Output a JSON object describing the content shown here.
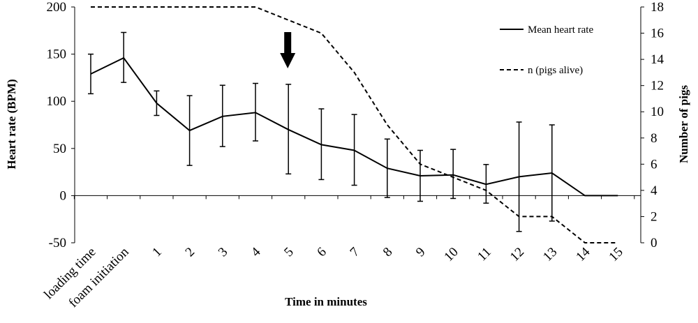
{
  "chart_data": {
    "type": "line",
    "categories": [
      "loading time",
      "foam initiation",
      "1",
      "2",
      "3",
      "4",
      "5",
      "6",
      "7",
      "8",
      "9",
      "10",
      "11",
      "12",
      "13",
      "14",
      "15"
    ],
    "series": [
      {
        "name": "Mean heart rate",
        "axis": "left",
        "style": "solid",
        "values": [
          129,
          146,
          98,
          69,
          84,
          88,
          70,
          54,
          48,
          29,
          21,
          22,
          12,
          20,
          24,
          0,
          0
        ],
        "error_low": [
          108,
          120,
          85,
          32,
          52,
          58,
          23,
          17,
          11,
          -2,
          -6,
          -3,
          -8,
          -38,
          -27,
          null,
          null
        ],
        "error_high": [
          150,
          173,
          111,
          106,
          117,
          119,
          118,
          92,
          86,
          60,
          48,
          49,
          33,
          78,
          75,
          null,
          null
        ]
      },
      {
        "name": "n  (pigs alive)",
        "axis": "right",
        "style": "dashed",
        "values": [
          18,
          18,
          18,
          18,
          18,
          18,
          17,
          16,
          13,
          9,
          6,
          5,
          4,
          2,
          2,
          0,
          0
        ]
      }
    ],
    "xlabel": "Time in minutes",
    "ylabel": "Heart rate (BPM)",
    "y2label": "Number of pigs",
    "ylim": [
      -50,
      200
    ],
    "y2lim": [
      0,
      18
    ],
    "yticks": [
      -50,
      0,
      50,
      100,
      150,
      200
    ],
    "y2ticks": [
      0,
      2,
      4,
      6,
      8,
      10,
      12,
      14,
      16,
      18
    ],
    "annotation": {
      "type": "arrow-down",
      "at_category": "5"
    },
    "grid": false,
    "legend": "top-right"
  },
  "colors": {
    "line": "#000000",
    "background": "#ffffff"
  }
}
